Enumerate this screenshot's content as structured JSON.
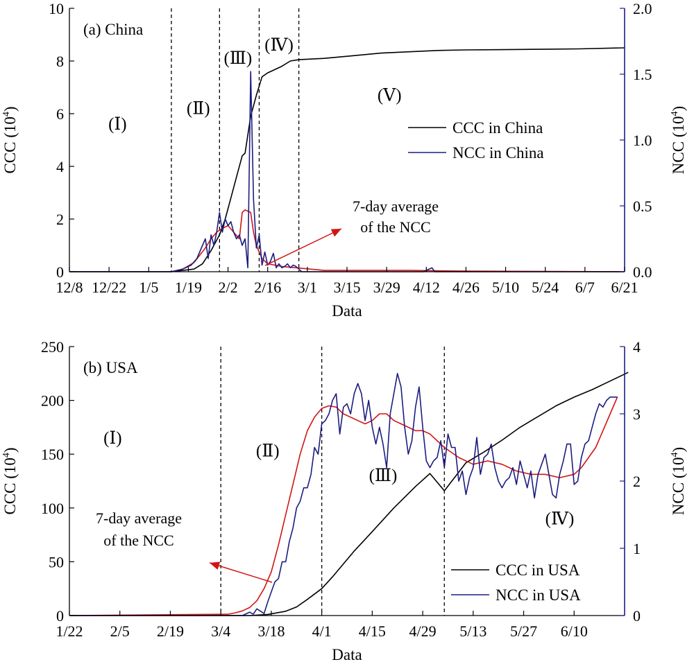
{
  "colors": {
    "ccc": "#000000",
    "ncc": "#1c1c80",
    "avg": "#d11414",
    "axis": "#000000"
  },
  "chart_data": [
    {
      "type": "line",
      "panel_label": "(a) China",
      "xlabel": "Data",
      "ylabel_left": "CCC (10",
      "ylabel_right": "NCC (10",
      "ylabel_exp": "4",
      "ylim_left": [
        0,
        10
      ],
      "ylim_right": [
        0,
        2.0
      ],
      "yticks_left": [
        0,
        2,
        4,
        6,
        8,
        10
      ],
      "yticks_right": [
        "0.0",
        "0.5",
        "1.0",
        "1.5",
        "2.0"
      ],
      "xticks": [
        "12/8",
        "12/22",
        "1/5",
        "1/19",
        "2/2",
        "2/16",
        "3/1",
        "3/15",
        "3/29",
        "4/12",
        "4/26",
        "5/10",
        "5/24",
        "6/7",
        "6/21"
      ],
      "x_unit": "day index from 12/8",
      "xlim": [
        0,
        196
      ],
      "phase_boundaries": [
        36,
        53,
        67,
        81
      ],
      "phases": [
        {
          "label": "(Ⅰ)",
          "x": 17,
          "y": 5.6
        },
        {
          "label": "(Ⅱ)",
          "x": 45.5,
          "y": 6.2
        },
        {
          "label": "(Ⅲ)",
          "x": 59.5,
          "y": 8.1
        },
        {
          "label": "(Ⅳ)",
          "x": 74,
          "y": 8.6
        },
        {
          "label": "(Ⅴ)",
          "x": 113,
          "y": 6.7
        }
      ],
      "legend_position": "right-middle",
      "annotation": {
        "lines": [
          "7-day average",
          "of the NCC"
        ]
      },
      "series": [
        {
          "name": "CCC in China",
          "axis": "left",
          "color": "#000000",
          "x": [
            0,
            36,
            40,
            44,
            47,
            50,
            53,
            55,
            57,
            59,
            61,
            62,
            64,
            66,
            68,
            70,
            75,
            78,
            81,
            90,
            100,
            110,
            120,
            130,
            140,
            150,
            160,
            170,
            180,
            196
          ],
          "y": [
            0,
            0,
            0.05,
            0.1,
            0.3,
            0.8,
            1.4,
            2.0,
            2.8,
            3.6,
            4.4,
            4.5,
            5.9,
            6.7,
            7.4,
            7.55,
            7.8,
            8.0,
            8.05,
            8.1,
            8.2,
            8.3,
            8.35,
            8.4,
            8.42,
            8.43,
            8.44,
            8.45,
            8.46,
            8.5
          ]
        },
        {
          "name": "NCC in China",
          "axis": "right",
          "color": "#1c1c80",
          "x": [
            0,
            36,
            40,
            43,
            45,
            47,
            48,
            49,
            50,
            51,
            52,
            53,
            54,
            55,
            56,
            57,
            58,
            59,
            60,
            61,
            62,
            63,
            64,
            65,
            66,
            67,
            68,
            69,
            70,
            71,
            72,
            73,
            74,
            75,
            76,
            77,
            78,
            79,
            80,
            81,
            82,
            86,
            95,
            110,
            125,
            128,
            129,
            130,
            145,
            160,
            196
          ],
          "y": [
            0,
            0,
            0.02,
            0.05,
            0.1,
            0.2,
            0.25,
            0.1,
            0.28,
            0.2,
            0.3,
            0.45,
            0.3,
            0.4,
            0.35,
            0.38,
            0.3,
            0.25,
            0.28,
            0.2,
            0.25,
            0.03,
            1.52,
            0.55,
            0.18,
            0.28,
            0.05,
            0.15,
            0.05,
            0.08,
            0.14,
            0.03,
            0.06,
            0.03,
            0.04,
            0.06,
            0.03,
            0.05,
            0.04,
            0.02,
            0.0,
            0.0,
            0.0,
            0.0,
            0.0,
            0.03,
            0.0,
            0.0,
            0.0,
            0.0,
            0.0
          ]
        },
        {
          "name": "7-day average of the NCC",
          "axis": "right",
          "color": "#d11414",
          "x": [
            36,
            40,
            44,
            48,
            50,
            52,
            54,
            56,
            58,
            60,
            61,
            62,
            63,
            64,
            65,
            66,
            68,
            70,
            75,
            80,
            85,
            90,
            100,
            120,
            140,
            196
          ],
          "y": [
            0,
            0.02,
            0.07,
            0.18,
            0.25,
            0.3,
            0.33,
            0.35,
            0.3,
            0.25,
            0.45,
            0.47,
            0.46,
            0.45,
            0.3,
            0.2,
            0.1,
            0.06,
            0.04,
            0.03,
            0.02,
            0.01,
            0.01,
            0.01,
            0.005,
            0.0
          ]
        }
      ]
    },
    {
      "type": "line",
      "panel_label": "(b) USA",
      "xlabel": "Data",
      "ylabel_left": "CCC (10",
      "ylabel_right": "NCC (10",
      "ylabel_exp": "4",
      "ylim_left": [
        0,
        250
      ],
      "ylim_right": [
        0,
        4
      ],
      "yticks_left": [
        0,
        50,
        100,
        150,
        200,
        250
      ],
      "yticks_right": [
        "0",
        "1",
        "2",
        "3",
        "4"
      ],
      "xticks": [
        "1/22",
        "2/5",
        "2/19",
        "3/4",
        "3/18",
        "4/1",
        "4/15",
        "4/29",
        "5/13",
        "5/27",
        "6/10"
      ],
      "x_unit": "day index from 1/22",
      "xlim": [
        0,
        154
      ],
      "phase_boundaries": [
        42,
        70,
        104
      ],
      "phases": [
        {
          "label": "(Ⅰ)",
          "x": 12,
          "y": 165
        },
        {
          "label": "(Ⅱ)",
          "x": 55,
          "y": 153
        },
        {
          "label": "(Ⅲ)",
          "x": 87,
          "y": 130
        },
        {
          "label": "(Ⅳ)",
          "x": 136,
          "y": 90
        }
      ],
      "legend_position": "bottom-right",
      "annotation": {
        "lines": [
          "7-day average",
          "of the NCC"
        ]
      },
      "series": [
        {
          "name": "CCC in USA",
          "axis": "left",
          "color": "#000000",
          "x": [
            0,
            50,
            55,
            60,
            63,
            66,
            70,
            73,
            76,
            79,
            84,
            90,
            96,
            100,
            104,
            110,
            115,
            120,
            125,
            130,
            135,
            140,
            145,
            150,
            155
          ],
          "y": [
            0,
            0,
            1,
            4,
            8,
            15,
            25,
            36,
            48,
            60,
            78,
            100,
            120,
            132,
            116,
            142,
            152,
            163,
            175,
            185,
            195,
            203,
            210,
            218,
            226
          ]
        },
        {
          "name": "NCC in USA",
          "axis": "right",
          "color": "#1c1c80",
          "x": [
            0,
            48,
            50,
            51,
            52,
            54,
            55,
            56,
            57,
            58,
            59,
            60,
            61,
            62,
            63,
            64,
            65,
            66,
            67,
            68,
            69,
            70,
            71,
            72,
            73,
            74,
            75,
            76,
            77,
            78,
            79,
            80,
            81,
            82,
            83,
            84,
            85,
            86,
            87,
            88,
            89,
            90,
            91,
            92,
            93,
            94,
            95,
            96,
            97,
            98,
            99,
            100,
            101,
            102,
            103,
            104,
            105,
            106,
            107,
            108,
            109,
            110,
            111,
            112,
            113,
            114,
            115,
            116,
            117,
            118,
            119,
            120,
            121,
            122,
            123,
            124,
            125,
            126,
            127,
            128,
            129,
            130,
            131,
            132,
            133,
            134,
            135,
            136,
            137,
            138,
            139,
            140,
            141,
            142,
            143,
            144,
            145,
            146,
            147,
            148,
            149,
            150,
            151,
            152
          ],
          "y": [
            0,
            0,
            0.05,
            0.02,
            0.1,
            0.03,
            0.2,
            0.35,
            0.5,
            0.55,
            0.8,
            0.8,
            1.1,
            1.3,
            1.6,
            1.7,
            1.9,
            1.9,
            2.1,
            2.5,
            2.4,
            2.85,
            2.9,
            3.0,
            3.2,
            3.3,
            2.7,
            3.1,
            3.15,
            3.0,
            3.3,
            3.45,
            3.3,
            2.9,
            3.2,
            2.8,
            2.55,
            2.8,
            2.55,
            2.2,
            3.0,
            3.3,
            3.6,
            3.4,
            2.8,
            2.4,
            2.6,
            3.1,
            3.4,
            2.8,
            2.3,
            2.2,
            2.3,
            2.35,
            2.6,
            2.2,
            2.7,
            2.5,
            2.5,
            2.0,
            2.15,
            1.8,
            2.05,
            2.2,
            2.65,
            2.1,
            2.35,
            2.4,
            2.55,
            2.2,
            2.0,
            1.9,
            2.0,
            2.05,
            2.2,
            1.95,
            2.3,
            2.1,
            1.9,
            2.15,
            1.75,
            2.1,
            2.25,
            2.4,
            2.1,
            1.8,
            1.75,
            2.1,
            2.3,
            2.55,
            2.55,
            1.95,
            2.0,
            2.35,
            2.55,
            2.6,
            2.8,
            3.0,
            3.15,
            3.1,
            3.2,
            3.25,
            3.25,
            3.25
          ]
        },
        {
          "name": "7-day average of the NCC",
          "axis": "right",
          "color": "#d11414",
          "x": [
            0,
            44,
            46,
            48,
            50,
            52,
            54,
            56,
            58,
            60,
            62,
            64,
            66,
            68,
            70,
            72,
            74,
            76,
            78,
            80,
            82,
            84,
            86,
            88,
            90,
            92,
            94,
            96,
            98,
            100,
            104,
            108,
            112,
            116,
            120,
            124,
            128,
            132,
            136,
            140,
            142,
            144,
            146,
            148,
            150,
            152
          ],
          "y": [
            0,
            0.02,
            0.04,
            0.07,
            0.12,
            0.22,
            0.4,
            0.65,
            1.05,
            1.5,
            1.95,
            2.4,
            2.75,
            2.95,
            3.08,
            3.12,
            3.1,
            3.0,
            2.95,
            2.9,
            2.85,
            2.9,
            3.0,
            3.0,
            2.9,
            2.85,
            2.8,
            2.75,
            2.75,
            2.7,
            2.5,
            2.35,
            2.25,
            2.3,
            2.25,
            2.15,
            2.1,
            2.1,
            2.05,
            2.1,
            2.2,
            2.35,
            2.5,
            2.75,
            3.0,
            3.25
          ]
        }
      ]
    }
  ]
}
